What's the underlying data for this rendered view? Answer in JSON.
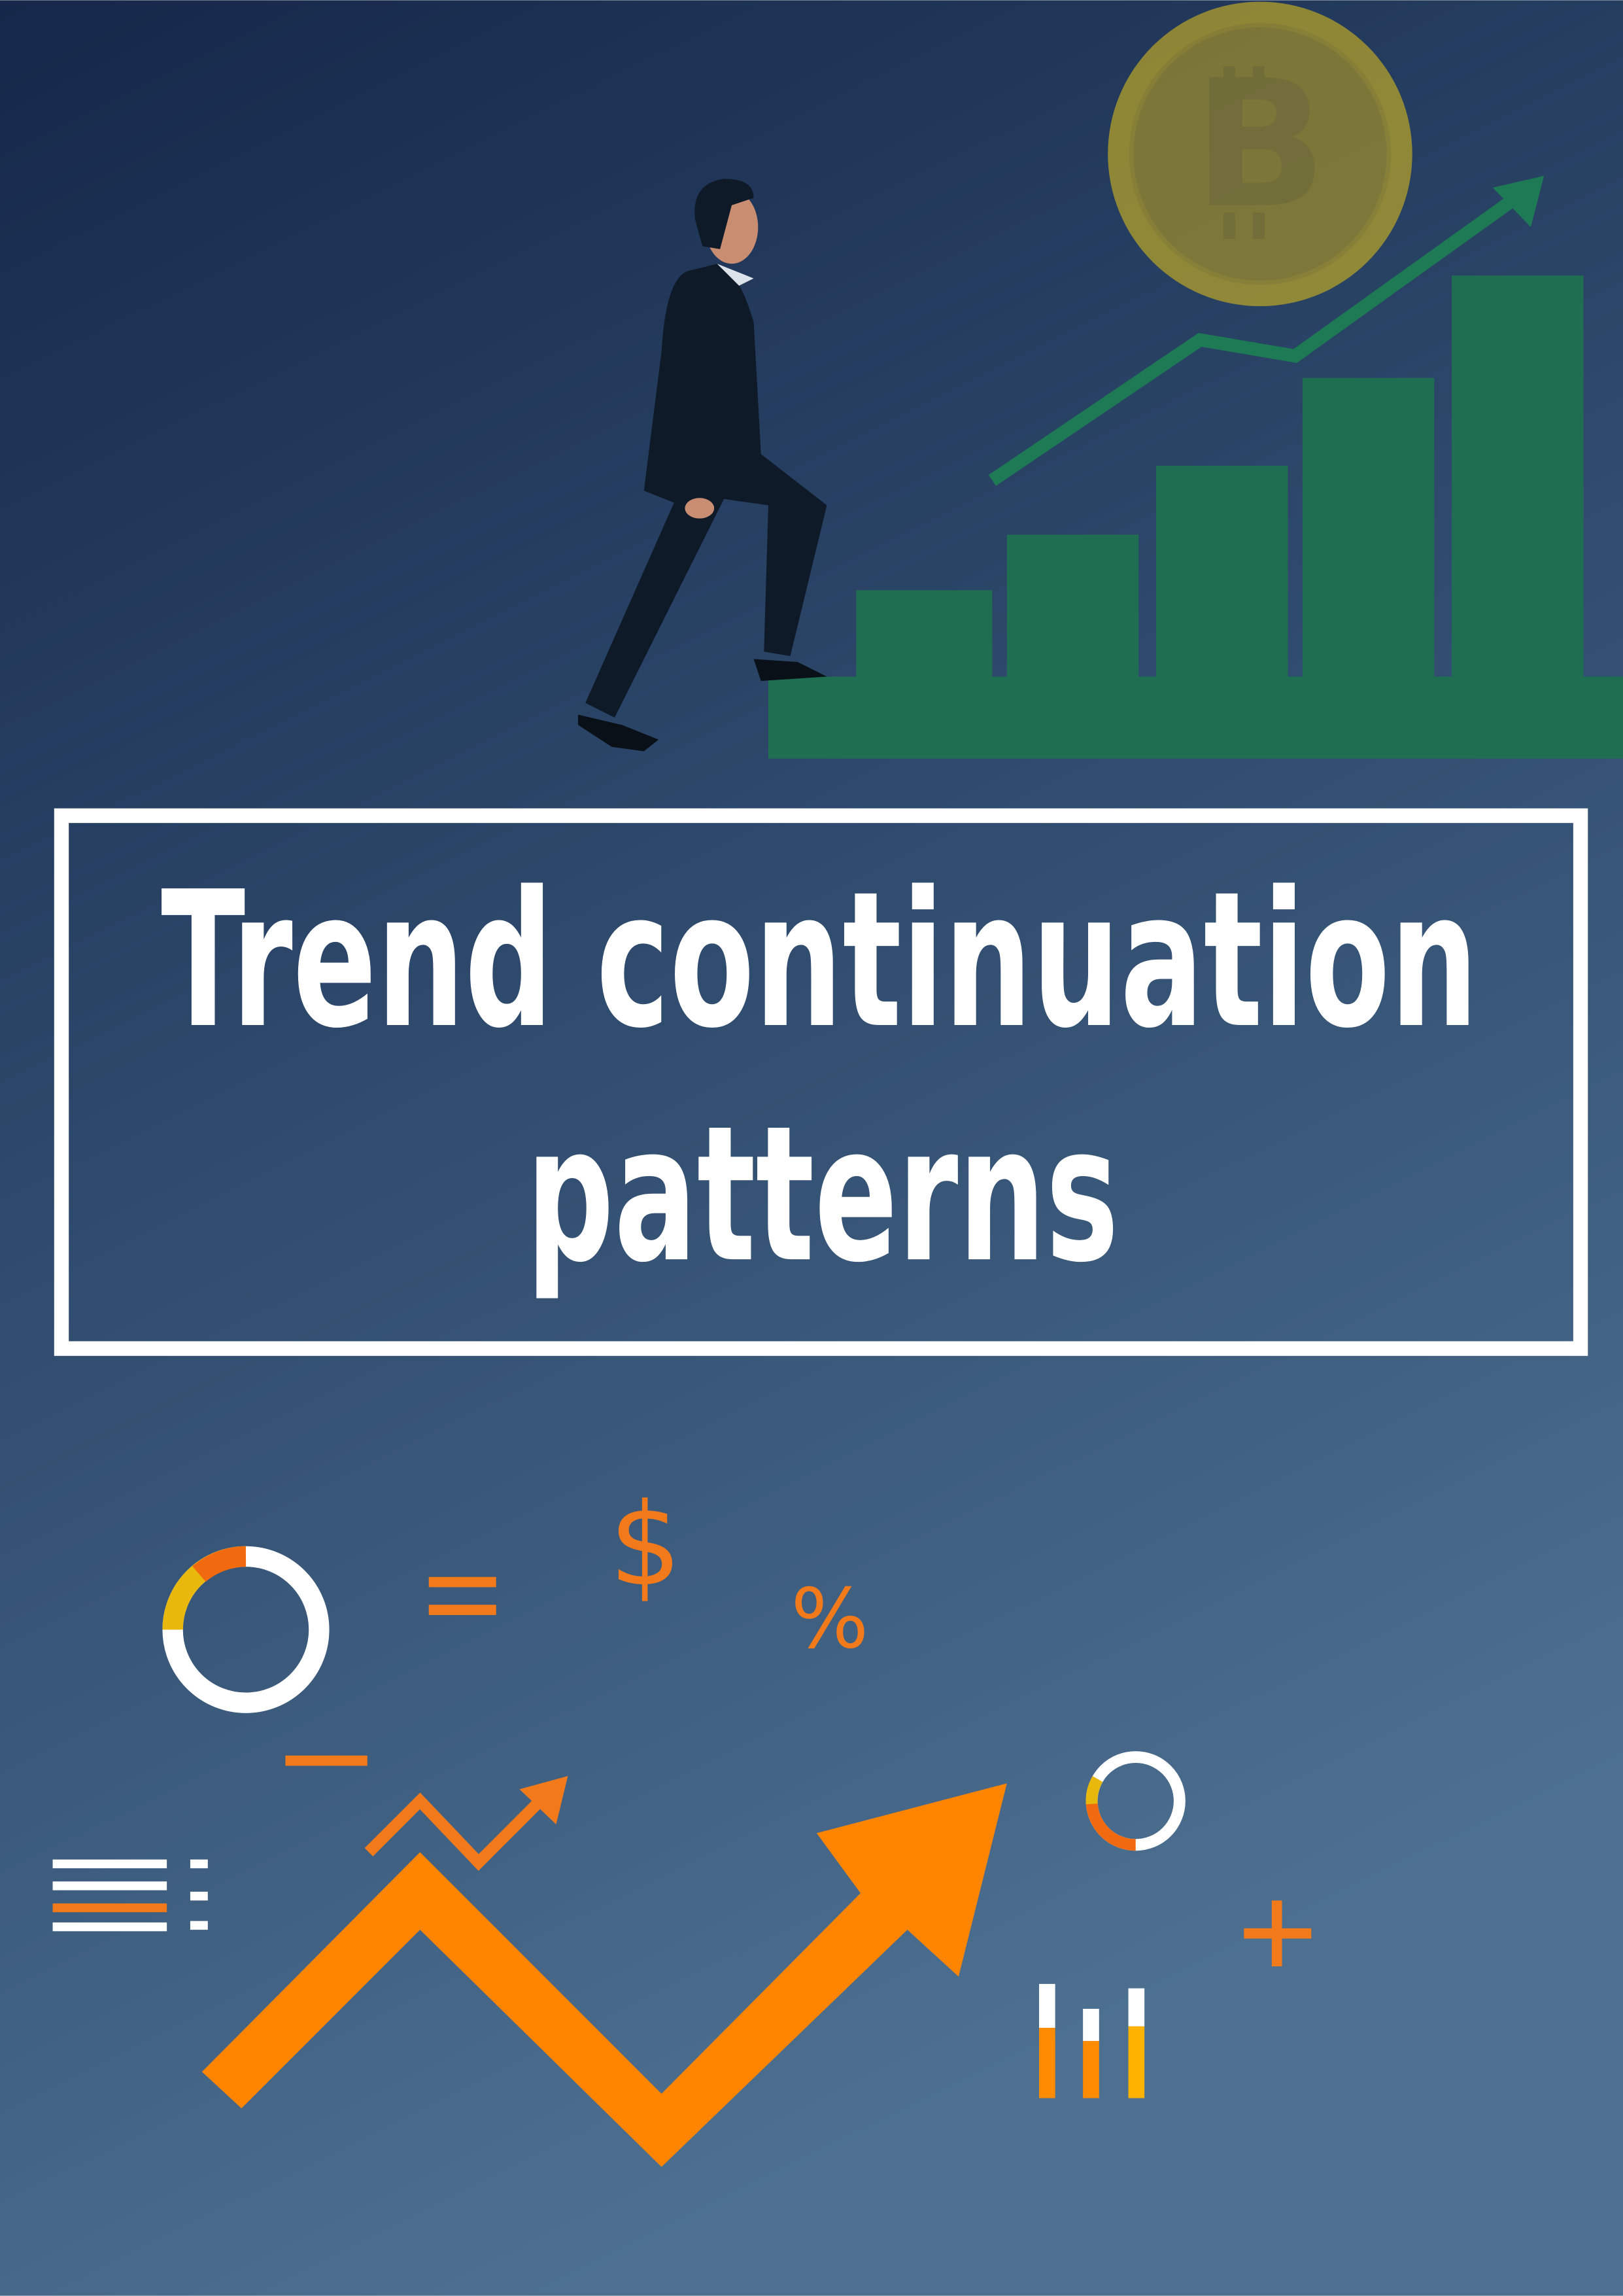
{
  "title_lines": [
    "Trend continuation",
    "patterns"
  ],
  "symbols": [
    "$",
    "%"
  ]
}
